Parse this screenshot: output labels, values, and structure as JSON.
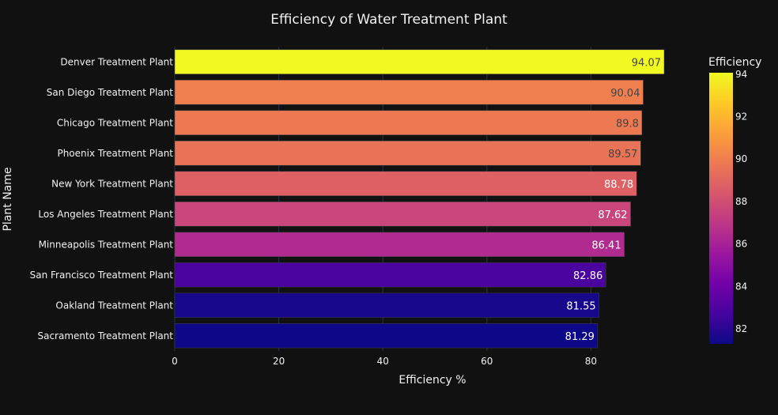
{
  "chart_data": {
    "type": "bar",
    "orientation": "horizontal",
    "title": "Efficiency of Water Treatment Plant",
    "xlabel": "Efficiency %",
    "ylabel": "Plant Name",
    "xlim": [
      0,
      94.07
    ],
    "x_ticks": [
      0,
      20,
      40,
      60,
      80
    ],
    "categories": [
      "Denver Treatment Plant",
      "San Diego Treatment Plant",
      "Chicago Treatment Plant",
      "Phoenix Treatment Plant",
      "New York Treatment Plant",
      "Los Angeles Treatment Plant",
      "Minneapolis Treatment Plant",
      "San Francisco Treatment Plant",
      "Oakland Treatment Plant",
      "Sacramento Treatment Plant"
    ],
    "values": [
      94.07,
      90.04,
      89.8,
      89.57,
      88.78,
      87.62,
      86.41,
      82.86,
      81.55,
      81.29
    ],
    "value_labels": [
      "94.07",
      "90.04",
      "89.8",
      "89.57",
      "88.78",
      "87.62",
      "86.41",
      "82.86",
      "81.55",
      "81.29"
    ],
    "colorbar": {
      "title": "Efficiency",
      "range": [
        81.29,
        94.07
      ],
      "ticks": [
        82,
        84,
        86,
        88,
        90,
        92,
        94
      ],
      "colorscale": [
        "#0d0887",
        "#46039f",
        "#7201a8",
        "#9c179e",
        "#bd3786",
        "#d8576b",
        "#ed7953",
        "#fb9f3a",
        "#fdca26",
        "#f0f921"
      ]
    },
    "grid": true,
    "colors": {
      "background": "#111111",
      "grid": "#283442",
      "text": "#f2f2f2"
    }
  }
}
